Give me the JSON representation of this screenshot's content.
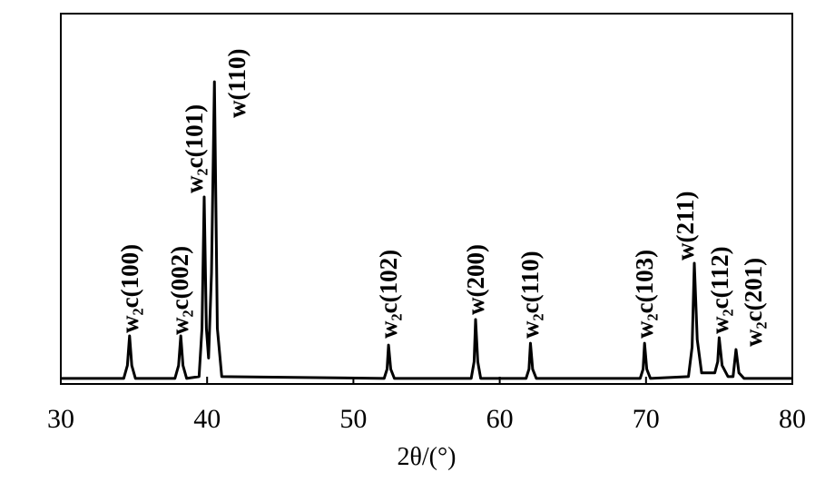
{
  "chart_data": {
    "type": "line",
    "x_label": "2θ/(°)",
    "x": [
      30,
      34.3,
      34.55,
      34.7,
      34.85,
      35.1,
      37.8,
      38.05,
      38.2,
      38.35,
      38.6,
      39.45,
      39.65,
      39.8,
      39.95,
      40.1,
      40.3,
      40.5,
      40.7,
      41.0,
      52.1,
      52.3,
      52.4,
      52.55,
      52.8,
      58.05,
      58.25,
      58.35,
      58.5,
      58.7,
      61.8,
      62.0,
      62.1,
      62.25,
      62.5,
      69.6,
      69.8,
      69.9,
      70.05,
      70.3,
      72.9,
      73.15,
      73.3,
      73.5,
      73.8,
      74.7,
      74.9,
      75.0,
      75.2,
      75.6,
      75.95,
      76.15,
      76.35,
      76.7,
      80
    ],
    "values": [
      1.5,
      1.5,
      5,
      13,
      5,
      1.5,
      1.5,
      5,
      13,
      5,
      1.5,
      2,
      15,
      50.5,
      15,
      7,
      30,
      81.6,
      15,
      2,
      1.5,
      4,
      10.5,
      4,
      1.5,
      1.5,
      6,
      17.4,
      6,
      1.5,
      1.5,
      4,
      11,
      4,
      1.5,
      1.5,
      4,
      11,
      4,
      1.5,
      2,
      10,
      32.6,
      12,
      3,
      3,
      6,
      12.5,
      5,
      2,
      2,
      9.3,
      3,
      1.5,
      1.5
    ],
    "color": "#000000",
    "xlim": [
      30,
      80
    ],
    "xticks": [
      30,
      40,
      50,
      60,
      70,
      80
    ],
    "ylim": [
      0,
      100
    ],
    "annotations": [
      "w₂c(100)",
      "w₂c(002)",
      "w₂c(101)",
      "w(110)",
      "w₂c(102)",
      "w(200)",
      "w₂c(110)",
      "w₂c(103)",
      "w(211)",
      "w₂c(112)",
      "w₂c(201)"
    ]
  }
}
